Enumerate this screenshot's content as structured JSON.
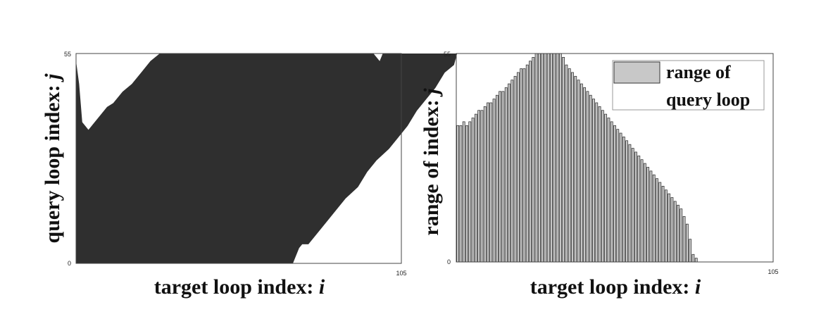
{
  "chart_data": [
    {
      "type": "area",
      "xlabel": "target loop index: ",
      "xlabel_var": "i",
      "ylabel": "query loop index: ",
      "ylabel_var": "j",
      "xlim": [
        0,
        105
      ],
      "ylim": [
        0,
        55
      ],
      "x_ticks": [
        "105"
      ],
      "y_ticks": [
        "0",
        "55"
      ],
      "fill_color": "#2f2f2f",
      "series": [
        {
          "upper": [
            [
              0,
              53
            ],
            [
              1,
              47
            ],
            [
              2,
              37
            ],
            [
              3,
              36
            ],
            [
              4,
              35
            ],
            [
              6,
              37
            ],
            [
              10,
              41
            ],
            [
              12,
              42
            ],
            [
              15,
              45
            ],
            [
              18,
              47
            ],
            [
              21,
              50
            ],
            [
              24,
              53
            ],
            [
              27,
              55
            ],
            [
              95,
              55
            ],
            [
              96,
              55
            ],
            [
              97,
              54
            ],
            [
              98,
              53
            ],
            [
              99,
              55
            ]
          ],
          "lower": [
            [
              0,
              0
            ],
            [
              70,
              0
            ],
            [
              72,
              4
            ],
            [
              73,
              5
            ],
            [
              75,
              5
            ],
            [
              79,
              9
            ],
            [
              82,
              12
            ],
            [
              84,
              14
            ],
            [
              87,
              17
            ],
            [
              91,
              20
            ],
            [
              94,
              24
            ],
            [
              97,
              27
            ],
            [
              101,
              30
            ],
            [
              104,
              33
            ],
            [
              107,
              36
            ],
            [
              110,
              40
            ],
            [
              113,
              43
            ],
            [
              116,
              46
            ],
            [
              119,
              50
            ],
            [
              122,
              52
            ],
            [
              123,
              55
            ]
          ]
        }
      ]
    },
    {
      "type": "bar",
      "xlabel": "target loop index: ",
      "xlabel_var": "i",
      "ylabel": "range of index: ",
      "ylabel_var": "j",
      "xlim": [
        0,
        105
      ],
      "ylim": [
        0,
        55
      ],
      "x_ticks": [
        "105"
      ],
      "y_ticks": [
        "0",
        "55"
      ],
      "bar_color": "#c8c8c8",
      "legend": {
        "label_line1": "range of",
        "label_line2": "query loop",
        "position": "top-right"
      },
      "series": [
        {
          "name": "range of query loop",
          "values": [
            36,
            36,
            37,
            36,
            37,
            38,
            39,
            40,
            40,
            41,
            42,
            42,
            43,
            44,
            45,
            45,
            46,
            47,
            48,
            49,
            50,
            51,
            51,
            52,
            53,
            54,
            55,
            55,
            55,
            55,
            55,
            55,
            55,
            55,
            55,
            54,
            52,
            51,
            50,
            49,
            48,
            47,
            46,
            45,
            44,
            43,
            42,
            41,
            40,
            39,
            38,
            37,
            36,
            35,
            34,
            33,
            32,
            31,
            30,
            29,
            28,
            27,
            26,
            25,
            24,
            23,
            22,
            21,
            20,
            19,
            18,
            17,
            16,
            15,
            14,
            12,
            10,
            6,
            2,
            1
          ]
        }
      ]
    }
  ]
}
